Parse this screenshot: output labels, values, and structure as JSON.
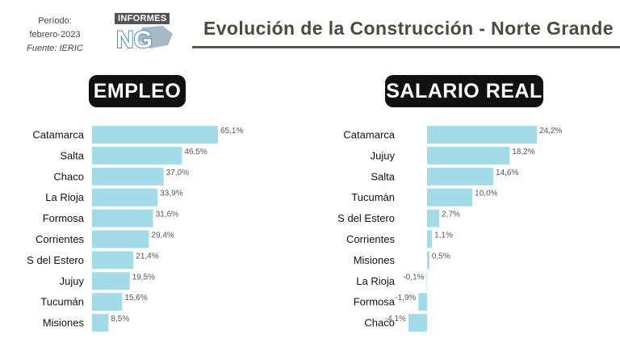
{
  "header": {
    "periodo_label": "Período:",
    "periodo_value": "febrero-2023",
    "fuente": "Fuente: IERIC",
    "logo_tag": "INFORMES",
    "logo_letters": "NG",
    "title": "Evolución de la Construcción - Norte  Grande"
  },
  "colors": {
    "bar": "#a3dbe8",
    "pill_bg": "#111111",
    "rule": "#55554d"
  },
  "chart_data": [
    {
      "type": "bar",
      "orientation": "horizontal",
      "title": "EMPLEO",
      "categories": [
        "Catamarca",
        "Salta",
        "Chaco",
        "La Rioja",
        "Formosa",
        "Corrientes",
        "S del Estero",
        "Jujuy",
        "Tucumán",
        "Misiones"
      ],
      "values": [
        65.1,
        46.5,
        37.0,
        33.9,
        31.6,
        29.4,
        21.4,
        19.5,
        15.6,
        8.5
      ],
      "labels": [
        "65,1%",
        "46,5%",
        "37,0%",
        "33,9%",
        "31,6%",
        "29,4%",
        "21,4%",
        "19,5%",
        "15,6%",
        "8,5%"
      ],
      "unit": "%",
      "xlim": [
        0,
        65.1
      ],
      "grid": false
    },
    {
      "type": "bar",
      "orientation": "horizontal",
      "title": "SALARIO REAL",
      "categories": [
        "Catamarca",
        "Jujuy",
        "Salta",
        "Tucumán",
        "S del Estero",
        "Corrientes",
        "Misiones",
        "La Rioja",
        "Formosa",
        "Chaco"
      ],
      "values": [
        24.2,
        18.2,
        14.6,
        10.0,
        2.7,
        1.1,
        0.5,
        -0.1,
        -1.9,
        -4.1
      ],
      "labels": [
        "24,2%",
        "18,2%",
        "14,6%",
        "10,0%",
        "2,7%",
        "1,1%",
        "0,5%",
        "-0,1%",
        "-1,9%",
        "-4,1%"
      ],
      "unit": "%",
      "xlim": [
        -4.1,
        24.2
      ],
      "grid": false
    }
  ]
}
